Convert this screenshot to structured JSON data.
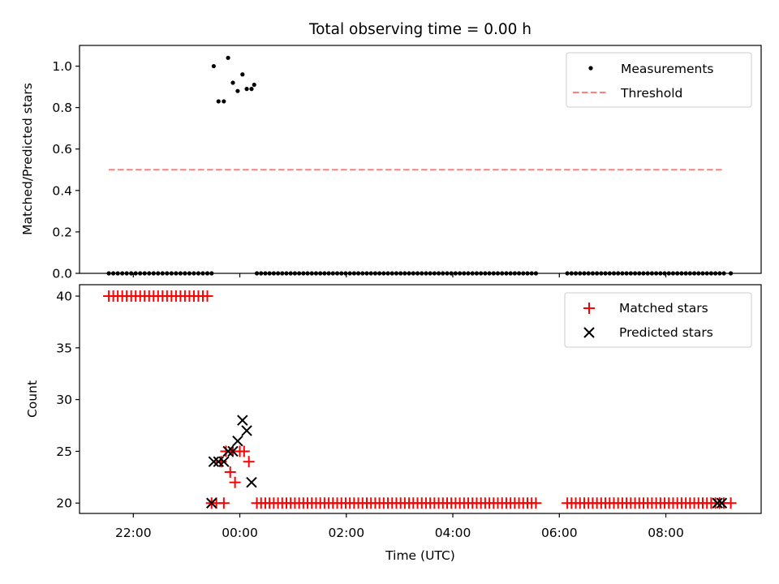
{
  "title": "Total observing time = 0.00 h",
  "x_ticks": [
    "22:00",
    "00:00",
    "02:00",
    "04:00",
    "06:00",
    "08:00"
  ],
  "x_tick_hours": [
    22,
    24,
    26,
    28,
    30,
    32
  ],
  "xlim_hours": [
    20.99,
    33.79
  ],
  "xlabel": "Time (UTC)",
  "colors": {
    "measurements": "#000000",
    "threshold": "#ff7f7f",
    "matched": "#ff0000",
    "predicted": "#000000"
  },
  "chart_data": [
    {
      "type": "scatter",
      "panel": "top",
      "ylabel": "Matched/Predicted stars",
      "ylim": [
        0,
        1.1
      ],
      "y_ticks": [
        "0.0",
        "0.2",
        "0.4",
        "0.6",
        "0.8",
        "1.0"
      ],
      "y_tick_values": [
        0,
        0.2,
        0.4,
        0.6,
        0.8,
        1.0
      ],
      "legend": [
        "Measurements",
        "Threshold"
      ],
      "legend_position": "upper right",
      "threshold": {
        "y": 0.5,
        "x_range_hours": [
          21.54,
          33.09
        ]
      },
      "zero_groups": [
        {
          "start": 21.54,
          "end": 23.39,
          "count": 23
        },
        {
          "start": 24.32,
          "end": 29.56,
          "count": 67
        },
        {
          "start": 30.15,
          "end": 33.09,
          "count": 38
        }
      ],
      "measurements": [
        {
          "x": 23.51,
          "y": 1.0
        },
        {
          "x": 23.6,
          "y": 0.83
        },
        {
          "x": 23.7,
          "y": 0.83
        },
        {
          "x": 23.78,
          "y": 1.04
        },
        {
          "x": 23.87,
          "y": 0.92
        },
        {
          "x": 23.96,
          "y": 0.88
        },
        {
          "x": 24.05,
          "y": 0.96
        },
        {
          "x": 24.13,
          "y": 0.89
        },
        {
          "x": 24.22,
          "y": 0.89
        },
        {
          "x": 24.27,
          "y": 0.91
        },
        {
          "x": 23.47,
          "y": 0.0
        },
        {
          "x": 33.22,
          "y": 0.0
        }
      ]
    },
    {
      "type": "scatter",
      "panel": "bottom",
      "ylabel": "Count",
      "ylim": [
        19.0,
        41.1
      ],
      "y_ticks": [
        "20",
        "25",
        "30",
        "35",
        "40"
      ],
      "y_tick_values": [
        20,
        25,
        30,
        35,
        40
      ],
      "legend": [
        "Matched stars",
        "Predicted stars"
      ],
      "legend_position": "upper right",
      "matched_groups": [
        {
          "start": 21.54,
          "end": 23.39,
          "count": 23,
          "y": 40
        },
        {
          "start": 24.32,
          "end": 29.56,
          "count": 67,
          "y": 20
        },
        {
          "start": 30.15,
          "end": 33.09,
          "count": 38,
          "y": 20
        }
      ],
      "matched": [
        {
          "x": 23.47,
          "y": 20
        },
        {
          "x": 23.56,
          "y": 20
        },
        {
          "x": 23.65,
          "y": 24
        },
        {
          "x": 23.7,
          "y": 20
        },
        {
          "x": 23.74,
          "y": 25
        },
        {
          "x": 23.82,
          "y": 23
        },
        {
          "x": 23.87,
          "y": 25
        },
        {
          "x": 23.91,
          "y": 22
        },
        {
          "x": 24.0,
          "y": 25
        },
        {
          "x": 24.08,
          "y": 25
        },
        {
          "x": 24.17,
          "y": 24
        },
        {
          "x": 33.01,
          "y": 20
        },
        {
          "x": 33.22,
          "y": 20
        }
      ],
      "predicted": [
        {
          "x": 23.47,
          "y": 20
        },
        {
          "x": 23.51,
          "y": 24
        },
        {
          "x": 23.6,
          "y": 24
        },
        {
          "x": 23.7,
          "y": 24
        },
        {
          "x": 23.78,
          "y": 25
        },
        {
          "x": 23.87,
          "y": 25
        },
        {
          "x": 23.96,
          "y": 26
        },
        {
          "x": 24.05,
          "y": 28
        },
        {
          "x": 24.13,
          "y": 27
        },
        {
          "x": 24.22,
          "y": 22
        },
        {
          "x": 32.97,
          "y": 20
        },
        {
          "x": 33.05,
          "y": 20
        }
      ]
    }
  ]
}
